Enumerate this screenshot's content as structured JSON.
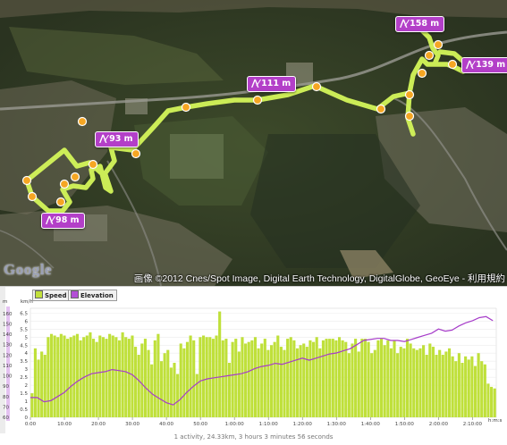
{
  "map": {
    "type": "satellite",
    "logo_text": "Google",
    "credit": "画像 ©2012 Cnes/Spot Image, Digital Earth Technology, DigitalGlobe, GeoEye - 利用規約",
    "route_color": "#c8f03c",
    "marker_color": "#f5a623",
    "label_color": "#b33fc8",
    "waypoint_labels": [
      {
        "id": "wp-158",
        "icon": "mountain-icon",
        "text": "158 m"
      },
      {
        "id": "wp-139",
        "icon": "mountain-icon",
        "text": "139 m"
      },
      {
        "id": "wp-111",
        "icon": "mountain-icon",
        "text": "111 m"
      },
      {
        "id": "wp-93",
        "icon": "mountain-icon",
        "text": "93 m"
      },
      {
        "id": "wp-98",
        "icon": "mountain-icon",
        "text": "98 m"
      }
    ],
    "marker_icon": "direction-arrow-icon"
  },
  "chart": {
    "legend": [
      {
        "label": "Speed",
        "color": "#c2e03a"
      },
      {
        "label": "Elevation",
        "color": "#b34fd6"
      }
    ],
    "footer": "1 activity, 24.33km, 3 hours 3 minutes 56 seconds"
  },
  "chart_data": {
    "type": "bar",
    "left_axis_unit": "m",
    "left_axis_ticks": [
      "160",
      "150",
      "140",
      "130",
      "120",
      "110",
      "100",
      "90",
      "80",
      "70",
      "60"
    ],
    "speed_axis_unit": "km/h",
    "speed_axis_ticks": [
      "6.5",
      "6",
      "5.5",
      "5",
      "4.5",
      "4",
      "3.5",
      "3",
      "2.5",
      "2",
      "1.5",
      "1",
      "0.5",
      "0"
    ],
    "x_unit": "h:m:s",
    "x_ticks": [
      "0:00",
      "10:00",
      "20:00",
      "30:00",
      "40:00",
      "50:00",
      "1:00:00",
      "1:10:00",
      "1:20:00",
      "1:30:00",
      "1:40:00",
      "1:50:00",
      "2:00:00",
      "2:10:00"
    ],
    "ylim_elevation": [
      60,
      165
    ],
    "ylim_speed": [
      0,
      6.8
    ],
    "xlim_minutes": [
      0,
      137
    ],
    "series": [
      {
        "name": "Speed",
        "unit": "km/h",
        "values": [
          1.5,
          4.3,
          3.6,
          4.1,
          3.9,
          5.0,
          5.2,
          5.1,
          5.0,
          5.2,
          5.1,
          4.9,
          5.0,
          5.1,
          5.2,
          4.8,
          5.0,
          5.1,
          5.3,
          4.9,
          4.7,
          5.1,
          5.0,
          4.9,
          5.2,
          5.1,
          5.0,
          4.8,
          5.3,
          5.0,
          4.9,
          5.1,
          4.4,
          3.9,
          4.6,
          4.9,
          4.2,
          3.3,
          4.8,
          5.2,
          3.5,
          4.0,
          4.2,
          3.1,
          3.4,
          2.7,
          4.6,
          4.3,
          4.7,
          5.1,
          4.8,
          2.7,
          5.0,
          5.1,
          5.0,
          5.0,
          4.9,
          5.1,
          6.6,
          4.8,
          4.9,
          3.4,
          4.7,
          4.9,
          4.1,
          5.0,
          4.6,
          4.7,
          4.8,
          5.0,
          4.3,
          4.6,
          4.9,
          4.2,
          4.5,
          4.7,
          5.1,
          4.4,
          4.2,
          4.9,
          5.0,
          4.8,
          4.3,
          4.5,
          4.6,
          4.4,
          4.8,
          4.7,
          5.0,
          4.3,
          4.8,
          4.9,
          4.9,
          4.9,
          4.8,
          5.0,
          4.8,
          4.7,
          4.0,
          4.6,
          4.9,
          4.1,
          4.9,
          4.9,
          4.7,
          4.0,
          4.2,
          4.8,
          4.9,
          4.5,
          4.8,
          4.3,
          4.8,
          4.0,
          4.4,
          4.3,
          4.9,
          4.6,
          4.3,
          4.2,
          4.3,
          4.5,
          3.9,
          4.6,
          4.4,
          3.9,
          4.2,
          3.9,
          4.1,
          4.3,
          3.8,
          3.5,
          4.0,
          3.4,
          3.8,
          3.6,
          3.8,
          3.2,
          4.0,
          3.5,
          3.3,
          2.1,
          1.9,
          1.8
        ]
      },
      {
        "name": "Elevation",
        "unit": "m",
        "points": [
          [
            0,
            79
          ],
          [
            2,
            79
          ],
          [
            4,
            75
          ],
          [
            6,
            76
          ],
          [
            8,
            80
          ],
          [
            10,
            84
          ],
          [
            12,
            90
          ],
          [
            14,
            95
          ],
          [
            16,
            99
          ],
          [
            18,
            102
          ],
          [
            20,
            103
          ],
          [
            22,
            104
          ],
          [
            24,
            106
          ],
          [
            26,
            105
          ],
          [
            28,
            104
          ],
          [
            30,
            101
          ],
          [
            32,
            95
          ],
          [
            34,
            88
          ],
          [
            36,
            82
          ],
          [
            38,
            78
          ],
          [
            40,
            74
          ],
          [
            42,
            72
          ],
          [
            44,
            77
          ],
          [
            46,
            84
          ],
          [
            48,
            90
          ],
          [
            50,
            95
          ],
          [
            52,
            97
          ],
          [
            54,
            98
          ],
          [
            56,
            99
          ],
          [
            58,
            100
          ],
          [
            60,
            101
          ],
          [
            62,
            102
          ],
          [
            64,
            104
          ],
          [
            66,
            107
          ],
          [
            68,
            109
          ],
          [
            70,
            110
          ],
          [
            72,
            112
          ],
          [
            74,
            111
          ],
          [
            76,
            113
          ],
          [
            78,
            115
          ],
          [
            80,
            117
          ],
          [
            82,
            115
          ],
          [
            84,
            117
          ],
          [
            86,
            119
          ],
          [
            88,
            121
          ],
          [
            90,
            122
          ],
          [
            92,
            124
          ],
          [
            94,
            126
          ],
          [
            96,
            130
          ],
          [
            98,
            134
          ],
          [
            100,
            135
          ],
          [
            102,
            136
          ],
          [
            104,
            136
          ],
          [
            106,
            134
          ],
          [
            108,
            134
          ],
          [
            110,
            133
          ],
          [
            112,
            135
          ],
          [
            114,
            137
          ],
          [
            116,
            139
          ],
          [
            118,
            141
          ],
          [
            120,
            145
          ],
          [
            122,
            143
          ],
          [
            124,
            144
          ],
          [
            126,
            148
          ],
          [
            128,
            151
          ],
          [
            130,
            153
          ],
          [
            132,
            156
          ],
          [
            134,
            157
          ],
          [
            136,
            153
          ]
        ]
      }
    ]
  }
}
